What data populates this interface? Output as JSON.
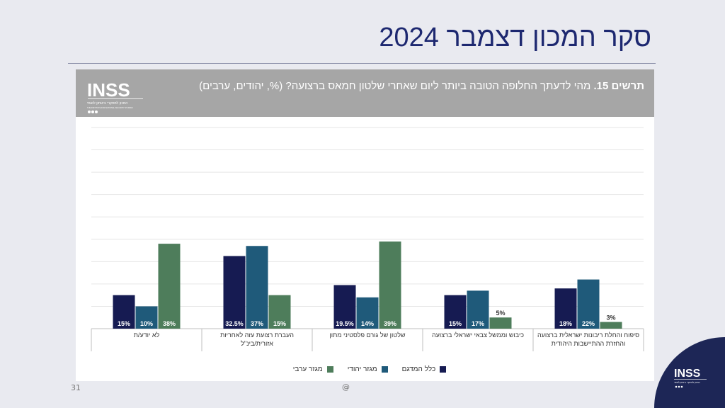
{
  "slide": {
    "title": "סקר המכון דצמבר 2024",
    "page_number": "31",
    "footer_mark": "@"
  },
  "header": {
    "figure_label": "תרשים 15.",
    "question_text": " מהי לדעתך החלופה הטובה ביותר ליום שאחרי שלטון חמאס ברצועה? (%, יהודים, ערבים)"
  },
  "logo": {
    "wordmark": "INSS",
    "tagline": "המכון למחקרי ביטחון לאומי",
    "tagline_en": "THE INSTITUTE FOR NATIONAL SECURITY STUDIES"
  },
  "colors": {
    "all": "#161b52",
    "jewish": "#1f5a7a",
    "arab": "#4e7d5b",
    "header_bg": "#a6a6a6",
    "title": "#1d2870"
  },
  "chart_data": {
    "type": "bar",
    "categories": [
      "סיפוח והחלת ריבונות ישראלית ברצועה והחזרת ההתיישבות היהודית",
      "כיבוש וממשל צבאי ישראלי ברצועה",
      "שלטון של גורם פלסטיני מתון",
      "העברת רצועת עזה לאחריות אזורית/בינ\"ל",
      "לא יודע/ת"
    ],
    "series": [
      {
        "name": "כלל המדגם",
        "values": [
          18,
          15,
          19.5,
          32.5,
          15
        ],
        "labels": [
          "18%",
          "15%",
          "19.5%",
          "32.5%",
          "15%"
        ]
      },
      {
        "name": "מגזר יהודי",
        "values": [
          22,
          17,
          14,
          37,
          10
        ],
        "labels": [
          "22%",
          "17%",
          "14%",
          "37%",
          "10%"
        ]
      },
      {
        "name": "מגזר ערבי",
        "values": [
          3,
          5,
          39,
          15,
          38
        ],
        "labels": [
          "3%",
          "5%",
          "39%",
          "15%",
          "38%"
        ]
      }
    ],
    "ylim": [
      0,
      90
    ],
    "grid": true,
    "legend_position": "bottom"
  }
}
